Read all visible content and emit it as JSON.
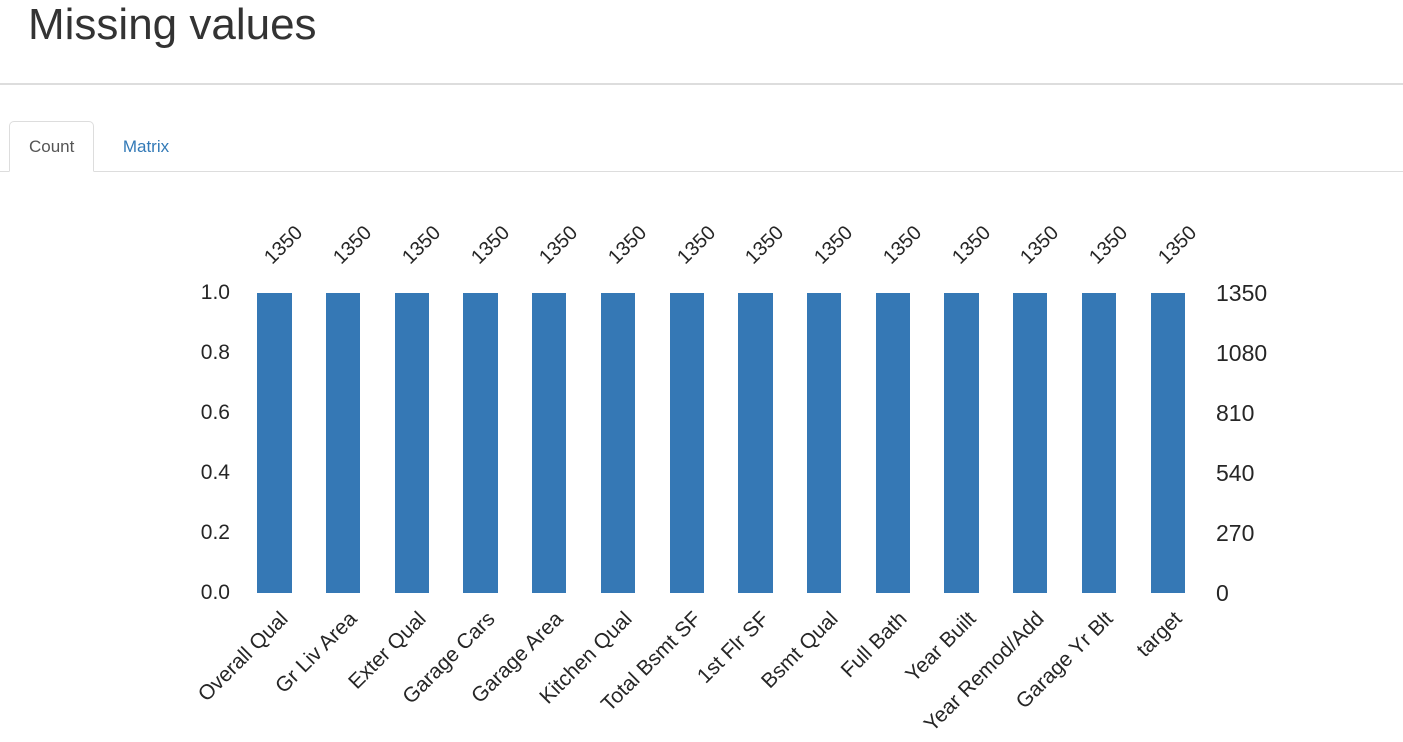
{
  "header": {
    "title": "Missing values"
  },
  "tabs": [
    {
      "label": "Count",
      "active": true
    },
    {
      "label": "Matrix",
      "active": false
    }
  ],
  "chart_data": {
    "type": "bar",
    "title": "",
    "xlabel": "",
    "ylabel": "",
    "categories": [
      "Overall Qual",
      "Gr Liv Area",
      "Exter Qual",
      "Garage Cars",
      "Garage Area",
      "Kitchen Qual",
      "Total Bsmt SF",
      "1st Flr SF",
      "Bsmt Qual",
      "Full Bath",
      "Year Built",
      "Year Remod/Add",
      "Garage Yr Blt",
      "target"
    ],
    "values": [
      1350,
      1350,
      1350,
      1350,
      1350,
      1350,
      1350,
      1350,
      1350,
      1350,
      1350,
      1350,
      1350,
      1350
    ],
    "bar_value_labels": [
      "1350",
      "1350",
      "1350",
      "1350",
      "1350",
      "1350",
      "1350",
      "1350",
      "1350",
      "1350",
      "1350",
      "1350",
      "1350",
      "1350"
    ],
    "left_axis": {
      "ticks": [
        "0.0",
        "0.2",
        "0.4",
        "0.6",
        "0.8",
        "1.0"
      ],
      "range": [
        0,
        1.0
      ]
    },
    "right_axis": {
      "ticks": [
        "0",
        "270",
        "540",
        "810",
        "1080",
        "1350"
      ],
      "range": [
        0,
        1350
      ]
    },
    "bar_color": "#3578b5",
    "grid": false,
    "legend": null
  },
  "colors": {
    "bar": "#3578b5",
    "tab_link": "#337ab7",
    "tab_active_text": "#555555",
    "axis_text": "#262626",
    "divider": "#dddddd",
    "title_text": "#333333"
  }
}
